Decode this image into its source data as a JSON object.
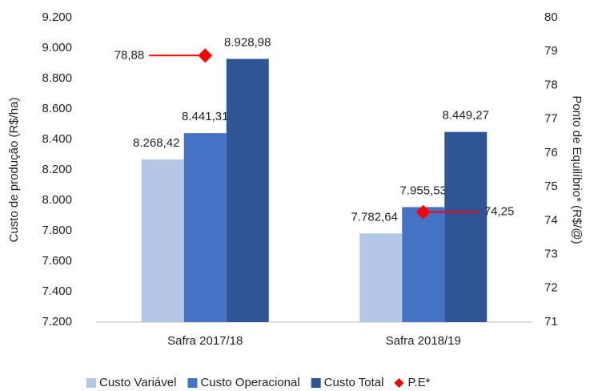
{
  "chart_data": {
    "type": "bar",
    "y_label": "Custo de produção (R$/ha)",
    "y2_label": "Ponto de Equilíbrio* (R$/@)",
    "categories": [
      "Safra 2017/18",
      "Safra 2018/19"
    ],
    "series": [
      {
        "name": "Custo Variável",
        "color": "#b4c7e7",
        "values": [
          8268.42,
          7782.64
        ],
        "value_labels": [
          "8.268,42",
          "7.782,64"
        ]
      },
      {
        "name": "Custo Operacional",
        "color": "#4472c4",
        "values": [
          8441.31,
          7955.53
        ],
        "value_labels": [
          "8.441,31",
          "7.955,53"
        ]
      },
      {
        "name": "Custo Total",
        "color": "#2f5597",
        "values": [
          8928.98,
          8449.27
        ],
        "value_labels": [
          "8.928,98",
          "8.449,27"
        ]
      },
      {
        "name": "P.E*",
        "type": "line",
        "axis": "y2",
        "color": "#ff0000",
        "values": [
          78.88,
          74.25
        ],
        "value_labels": [
          "78,88",
          "74,25"
        ]
      }
    ],
    "ylim": [
      7200,
      9200
    ],
    "yticks": [
      {
        "value": 7200,
        "label": "7.200"
      },
      {
        "value": 7400,
        "label": "7.400"
      },
      {
        "value": 7600,
        "label": "7.600"
      },
      {
        "value": 7800,
        "label": "7.800"
      },
      {
        "value": 8000,
        "label": "8.000"
      },
      {
        "value": 8200,
        "label": "8.200"
      },
      {
        "value": 8400,
        "label": "8.400"
      },
      {
        "value": 8600,
        "label": "8.600"
      },
      {
        "value": 8800,
        "label": "8.800"
      },
      {
        "value": 9000,
        "label": "9.000"
      },
      {
        "value": 9200,
        "label": "9.200"
      }
    ],
    "y2lim": [
      71,
      80
    ],
    "y2ticks": [
      71,
      72,
      73,
      74,
      75,
      76,
      77,
      78,
      79,
      80
    ],
    "grid": false,
    "legend": "bottom"
  }
}
